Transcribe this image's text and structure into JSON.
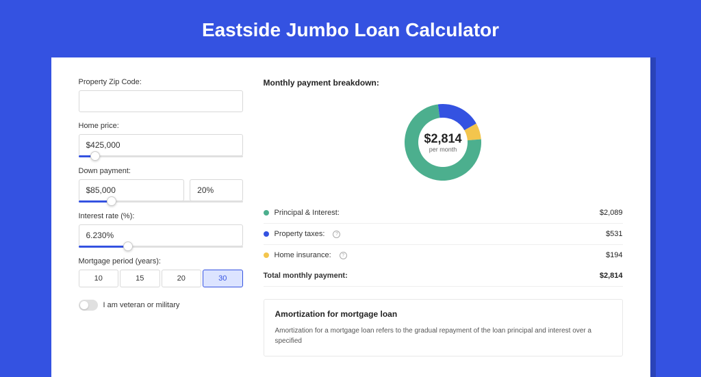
{
  "page": {
    "title": "Eastside Jumbo Loan Calculator",
    "background": "#3452e1",
    "card_shadow": "#2a43b8"
  },
  "form": {
    "zip": {
      "label": "Property Zip Code:",
      "value": ""
    },
    "home_price": {
      "label": "Home price:",
      "value": "$425,000",
      "slider_pct": 10
    },
    "down_payment": {
      "label": "Down payment:",
      "value": "$85,000",
      "pct_value": "20%",
      "slider_pct": 20
    },
    "interest": {
      "label": "Interest rate (%):",
      "value": "6.230%",
      "slider_pct": 30
    },
    "period": {
      "label": "Mortgage period (years):",
      "options": [
        "10",
        "15",
        "20",
        "30"
      ],
      "selected": "30"
    },
    "veteran": {
      "label": "I am veteran or military",
      "on": false
    }
  },
  "breakdown": {
    "title": "Monthly payment breakdown:",
    "donut": {
      "amount": "$2,814",
      "sub": "per month",
      "colors": {
        "principal": "#4caf8e",
        "taxes": "#3452e1",
        "insurance": "#f3c54d"
      },
      "fractions": {
        "principal": 0.742,
        "taxes": 0.189,
        "insurance": 0.069
      }
    },
    "items": [
      {
        "label": "Principal & Interest:",
        "value": "$2,089",
        "color": "#4caf8e",
        "info": false
      },
      {
        "label": "Property taxes:",
        "value": "$531",
        "color": "#3452e1",
        "info": true
      },
      {
        "label": "Home insurance:",
        "value": "$194",
        "color": "#f3c54d",
        "info": true
      }
    ],
    "total": {
      "label": "Total monthly payment:",
      "value": "$2,814"
    }
  },
  "amort": {
    "title": "Amortization for mortgage loan",
    "text": "Amortization for a mortgage loan refers to the gradual repayment of the loan principal and interest over a specified"
  }
}
